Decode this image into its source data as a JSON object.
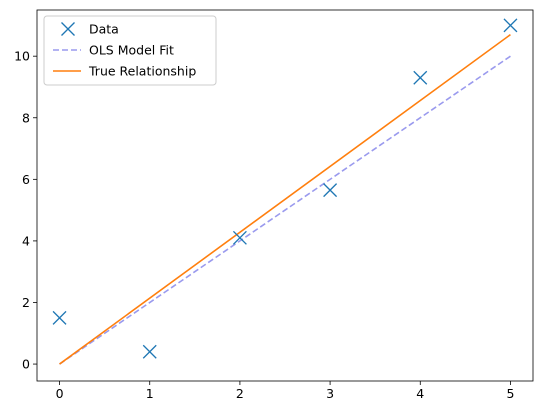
{
  "chart_data": {
    "type": "line",
    "title": "",
    "xlabel": "",
    "ylabel": "",
    "xlim": [
      -0.25,
      5.25
    ],
    "ylim": [
      -0.55,
      11.5
    ],
    "grid": false,
    "legend_position": "top-left",
    "x_ticks": [
      0,
      1,
      2,
      3,
      4,
      5
    ],
    "y_ticks": [
      0,
      2,
      4,
      6,
      8,
      10
    ],
    "series": [
      {
        "name": "Data",
        "kind": "markers",
        "marker": "x",
        "color": "#1f77b4",
        "x": [
          0,
          1,
          2,
          3,
          4,
          5
        ],
        "y": [
          1.5,
          0.4,
          4.1,
          5.65,
          9.3,
          11.0
        ]
      },
      {
        "name": "OLS Model Fit",
        "kind": "line",
        "style": "dashed",
        "color": "#9a9aee",
        "x": [
          0,
          5
        ],
        "y": [
          0,
          10.0
        ]
      },
      {
        "name": "True Relationship",
        "kind": "line",
        "style": "solid",
        "color": "#ff7f0e",
        "x": [
          0,
          5
        ],
        "y": [
          0,
          10.7
        ]
      }
    ]
  }
}
